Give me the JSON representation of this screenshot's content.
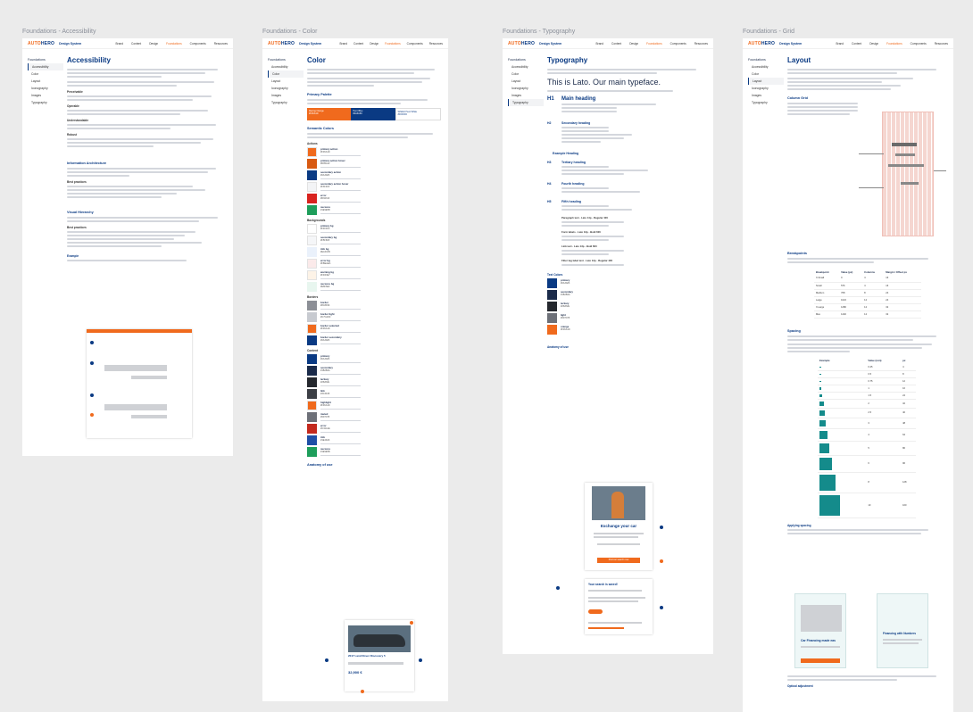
{
  "boards": [
    {
      "title": "Foundations - Accessibility"
    },
    {
      "title": "Foundations - Color"
    },
    {
      "title": "Foundations - Typography"
    },
    {
      "title": "Foundations - Grid"
    }
  ],
  "header": {
    "logo_a": "AUTO",
    "logo_b": "HERO",
    "subtitle": "Design System",
    "nav": [
      "Brand",
      "Content",
      "Design",
      "Foundations",
      "Components",
      "Resources"
    ],
    "active_nav": "Foundations"
  },
  "sidebar": {
    "heading": "Foundations",
    "items": [
      "Accessibility",
      "Color",
      "Layout",
      "Iconography",
      "Images",
      "Typography"
    ]
  },
  "accessibility": {
    "title": "Accessibility",
    "sections": [
      "Information Architecture",
      "Visual Hierarchy"
    ],
    "subsections": [
      "Perceivable",
      "Operable",
      "Understandable",
      "Robust",
      "Best practices",
      "Best practices",
      "Example"
    ]
  },
  "color": {
    "title": "Color",
    "primary_palette": "Primary Palette",
    "palette": [
      {
        "name": "Racing Orange",
        "hex": "#F06A1D"
      },
      {
        "name": "Hero Blue",
        "hex": "#0A3A83"
      },
      {
        "name": "Whitish Hero White",
        "hex": "#FFFFFF"
      }
    ],
    "semantic": "Semantic Colors",
    "groups": [
      {
        "name": "Actions",
        "swatches": [
          {
            "label": "primary action",
            "hex": "#F06A1D"
          },
          {
            "label": "primary action hover",
            "hex": "#D85A12"
          },
          {
            "label": "secondary action",
            "hex": "#0A3A83"
          },
          {
            "label": "secondary action hover",
            "hex": "#F3F4F6"
          },
          {
            "label": "error",
            "hex": "#D9231F"
          },
          {
            "label": "success",
            "hex": "#1E9E5B"
          }
        ]
      },
      {
        "name": "Backgrounds",
        "swatches": [
          {
            "label": "primary bg",
            "hex": "#FFFFFF"
          },
          {
            "label": "secondary bg",
            "hex": "#F5F6F8"
          },
          {
            "label": "info bg",
            "hex": "#EAF1FB"
          },
          {
            "label": "error bg",
            "hex": "#FBEAEA"
          },
          {
            "label": "warning bg",
            "hex": "#FDF3E7"
          },
          {
            "label": "success bg",
            "hex": "#E8F6EF"
          }
        ]
      },
      {
        "name": "Borders",
        "swatches": [
          {
            "label": "border",
            "hex": "#8C8F96"
          },
          {
            "label": "border light",
            "hex": "#C7CAD0"
          },
          {
            "label": "border selected",
            "hex": "#F06A1D"
          },
          {
            "label": "border secondary",
            "hex": "#0A3A83"
          }
        ]
      },
      {
        "name": "Content",
        "swatches": [
          {
            "label": "primary",
            "hex": "#0A3A83"
          },
          {
            "label": "secondary",
            "hex": "#1B2B4A"
          },
          {
            "label": "tertiary",
            "hex": "#25282E"
          },
          {
            "label": "link",
            "hex": "#3C3F45"
          },
          {
            "label": "highlight",
            "hex": "#F06A1D"
          },
          {
            "label": "muted",
            "hex": "#6D7078"
          },
          {
            "label": "error",
            "hex": "#C32A1E"
          },
          {
            "label": "info",
            "hex": "#1E4FA6"
          },
          {
            "label": "success",
            "hex": "#1E9E5B"
          }
        ]
      }
    ],
    "anatomy": "Anatomy of use",
    "car_title": "2017 Land Rover Discovery 5",
    "car_price": "32,900 €"
  },
  "typography": {
    "title": "Typography",
    "sample": "This is Lato. Our main typeface.",
    "headings": [
      {
        "tag": "H1",
        "label": "Main heading"
      },
      {
        "tag": "H2",
        "label": "Secondary heading"
      },
      {
        "tag": "",
        "label": "Example Heading"
      },
      {
        "tag": "H3",
        "label": "Tertiary heading"
      },
      {
        "tag": "H4",
        "label": "Fourth heading"
      },
      {
        "tag": "H5",
        "label": "Fifth heading"
      }
    ],
    "text_styles": [
      "Paragraph text - Lato 14p - Regular 400",
      "Form labels - Lato 13p - Bold 600",
      "Link text - Lato 13p - Bold 600",
      "Filter tag label text - Lato 13p - Regular 400"
    ],
    "text_colors": "Text Colors",
    "text_swatches": [
      {
        "label": "primary",
        "hex": "#0A3A83"
      },
      {
        "label": "secondary",
        "hex": "#1B2B4A"
      },
      {
        "label": "tertiary",
        "hex": "#25282E"
      },
      {
        "label": "light",
        "hex": "#6D7078"
      },
      {
        "label": "orange",
        "hex": "#F06A1D"
      }
    ],
    "anatomy": "Anatomy of use",
    "exchange_title": "Exchange your car",
    "exchange_cta": "Find car search now",
    "search_title": "Your search is saved!"
  },
  "grid": {
    "title": "Layout",
    "column_grid": "Column Grid",
    "breakpoints": "Breakpoints",
    "bp_headers": [
      "Breakpoint",
      "Value (px)",
      "Columns",
      "Margin / Offset px"
    ],
    "bp_rows": [
      [
        "X-Small",
        "0",
        "4",
        "16"
      ],
      [
        "Small",
        "576",
        "4",
        "16"
      ],
      [
        "Medium",
        "768",
        "8",
        "24"
      ],
      [
        "Large",
        "1024",
        "12",
        "24"
      ],
      [
        "X-Large",
        "1280",
        "12",
        "32"
      ],
      [
        "Max",
        "1440",
        "12",
        "32"
      ]
    ],
    "spacing": "Spacing",
    "sp_headers": [
      "Example",
      "Value (rem)",
      "px"
    ],
    "sp_rows": [
      [
        "0.25",
        "4"
      ],
      [
        "0.5",
        "8"
      ],
      [
        "0.75",
        "12"
      ],
      [
        "1",
        "16"
      ],
      [
        "1.5",
        "24"
      ],
      [
        "2",
        "32"
      ],
      [
        "2.5",
        "40"
      ],
      [
        "3",
        "48"
      ],
      [
        "4",
        "64"
      ],
      [
        "5",
        "80"
      ],
      [
        "6",
        "96"
      ],
      [
        "8",
        "128"
      ],
      [
        "10",
        "160"
      ]
    ],
    "spacing_sub": "Applying spacing",
    "ex1": "Car Financing made eas",
    "ex2": "Financing with Numbers",
    "optical": "Optical adjustment"
  }
}
